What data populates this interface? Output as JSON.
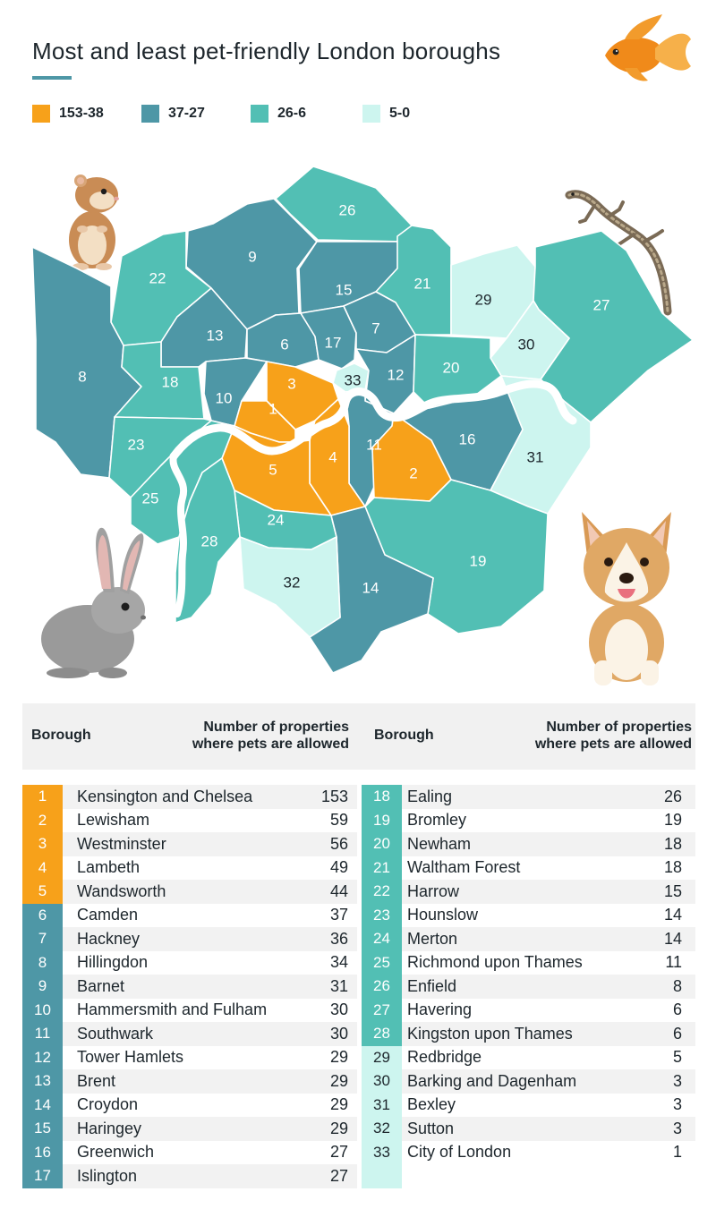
{
  "title": "Most and least pet-friendly London boroughs",
  "legend": [
    {
      "label": "153-38",
      "color": "#f7a11a"
    },
    {
      "label": "37-27",
      "color": "#4e97a6"
    },
    {
      "label": "26-6",
      "color": "#52bfb4"
    },
    {
      "label": "5-0",
      "color": "#cdf5ef"
    }
  ],
  "table_headers": {
    "borough": "Borough",
    "count_line1": "Number of properties",
    "count_line2": "where pets are allowed"
  },
  "chart_data": {
    "type": "table",
    "title": "Most and least pet-friendly London boroughs",
    "columns": [
      "Borough",
      "Number of properties where pets are allowed"
    ],
    "rows": [
      {
        "rank": 1,
        "borough": "Kensington and Chelsea",
        "value": 153,
        "band": 0
      },
      {
        "rank": 2,
        "borough": "Lewisham",
        "value": 59,
        "band": 0
      },
      {
        "rank": 3,
        "borough": "Westminster",
        "value": 56,
        "band": 0
      },
      {
        "rank": 4,
        "borough": "Lambeth",
        "value": 49,
        "band": 0
      },
      {
        "rank": 5,
        "borough": "Wandsworth",
        "value": 44,
        "band": 0
      },
      {
        "rank": 6,
        "borough": "Camden",
        "value": 37,
        "band": 1
      },
      {
        "rank": 7,
        "borough": "Hackney",
        "value": 36,
        "band": 1
      },
      {
        "rank": 8,
        "borough": "Hillingdon",
        "value": 34,
        "band": 1
      },
      {
        "rank": 9,
        "borough": "Barnet",
        "value": 31,
        "band": 1
      },
      {
        "rank": 10,
        "borough": "Hammersmith and Fulham",
        "value": 30,
        "band": 1
      },
      {
        "rank": 11,
        "borough": "Southwark",
        "value": 30,
        "band": 1
      },
      {
        "rank": 12,
        "borough": "Tower Hamlets",
        "value": 29,
        "band": 1
      },
      {
        "rank": 13,
        "borough": "Brent",
        "value": 29,
        "band": 1
      },
      {
        "rank": 14,
        "borough": "Croydon",
        "value": 29,
        "band": 1
      },
      {
        "rank": 15,
        "borough": "Haringey",
        "value": 29,
        "band": 1
      },
      {
        "rank": 16,
        "borough": "Greenwich",
        "value": 27,
        "band": 1
      },
      {
        "rank": 17,
        "borough": "Islington",
        "value": 27,
        "band": 1
      },
      {
        "rank": 18,
        "borough": "Ealing",
        "value": 26,
        "band": 2
      },
      {
        "rank": 19,
        "borough": "Bromley",
        "value": 19,
        "band": 2
      },
      {
        "rank": 20,
        "borough": "Newham",
        "value": 18,
        "band": 2
      },
      {
        "rank": 21,
        "borough": "Waltham Forest",
        "value": 18,
        "band": 2
      },
      {
        "rank": 22,
        "borough": "Harrow",
        "value": 15,
        "band": 2
      },
      {
        "rank": 23,
        "borough": "Hounslow",
        "value": 14,
        "band": 2
      },
      {
        "rank": 24,
        "borough": "Merton",
        "value": 14,
        "band": 2
      },
      {
        "rank": 25,
        "borough": "Richmond upon Thames",
        "value": 11,
        "band": 2
      },
      {
        "rank": 26,
        "borough": "Enfield",
        "value": 8,
        "band": 2
      },
      {
        "rank": 27,
        "borough": "Havering",
        "value": 6,
        "band": 2
      },
      {
        "rank": 28,
        "borough": "Kingston upon Thames",
        "value": 6,
        "band": 2
      },
      {
        "rank": 29,
        "borough": "Redbridge",
        "value": 5,
        "band": 3
      },
      {
        "rank": 30,
        "borough": "Barking and Dagenham",
        "value": 3,
        "band": 3
      },
      {
        "rank": 31,
        "borough": "Bexley",
        "value": 3,
        "band": 3
      },
      {
        "rank": 32,
        "borough": "Sutton",
        "value": 3,
        "band": 3
      },
      {
        "rank": 33,
        "borough": "City of London",
        "value": 1,
        "band": 3
      }
    ]
  },
  "icons": [
    "goldfish-icon",
    "hamster-icon",
    "lizard-icon",
    "rabbit-icon",
    "puppy-icon"
  ]
}
